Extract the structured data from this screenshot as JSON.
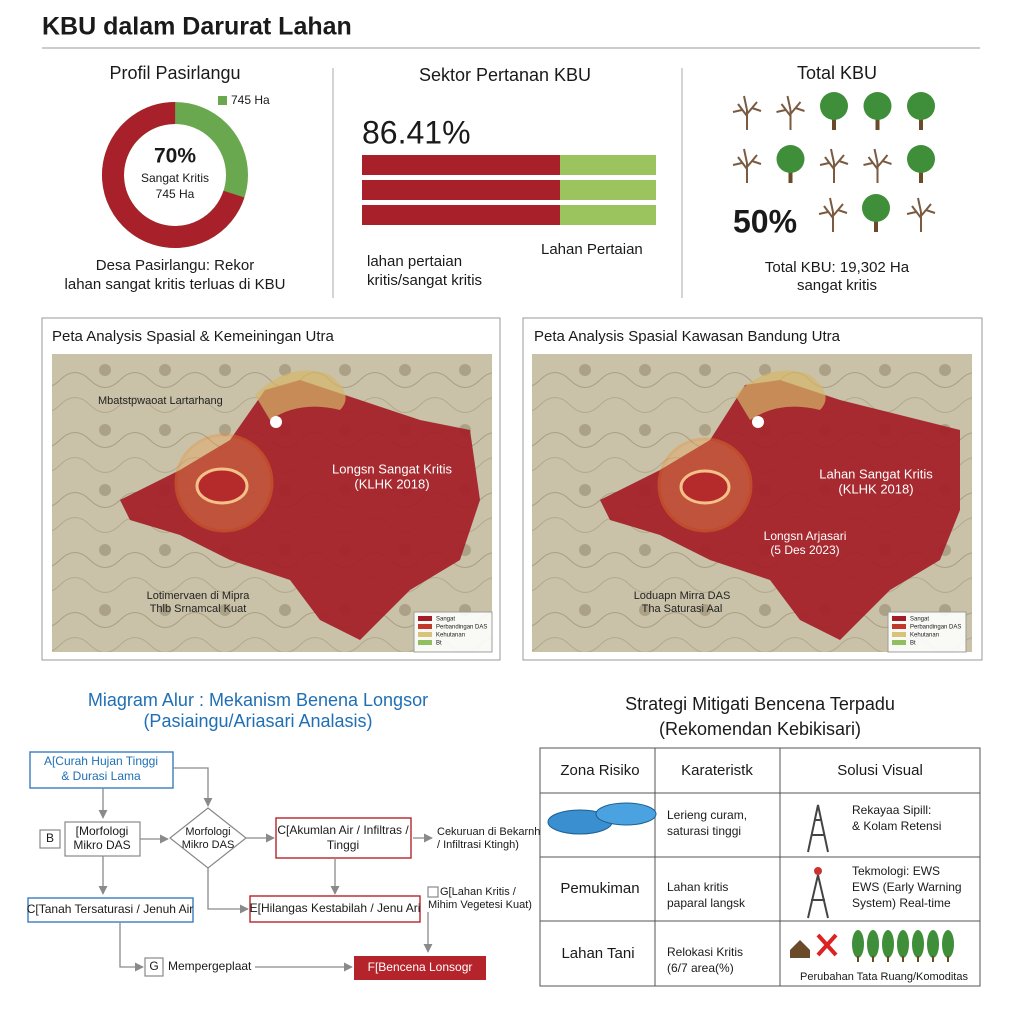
{
  "header": {
    "title": "KBU dalam Darurat Lahan"
  },
  "profile": {
    "title": "Profil Pasirlangu",
    "legend": "745 Ha",
    "donut": {
      "value": 70,
      "label": "70%"
    },
    "center_sub": "Sangat Kritis",
    "center_ha": "745 Ha",
    "caption": [
      "Desa Pasirlangu: Rekor",
      "lahan sangat kritis terluas di KBU"
    ]
  },
  "sector": {
    "title": "Sektor Pertanan KBU",
    "value": "86.41%",
    "left_label": [
      "lahan pertaian",
      "kritis/sangat kritis"
    ],
    "right_label": "Lahan Pertaian"
  },
  "total": {
    "title": "Total KBU",
    "value": "50%",
    "caption": [
      "Total KBU: 19,302 Ha",
      "sangat kritis"
    ]
  },
  "maps": [
    {
      "title": "Peta Analysis Spasial & Kemeiningan Utra",
      "boundary": "Mbatstpwaoat Lartarhang",
      "zone": [
        "Longsn Sangat Kritis",
        "(KLHK 2018)"
      ],
      "lower": [
        "Lotimervaen di Mipra",
        "Thlb Srnamcal Kuat"
      ],
      "legend": [
        "Sangat",
        "Perbandingan DAS",
        "Kehutanan",
        "Bt"
      ]
    },
    {
      "title": "Peta Analysis Spasial Kawasan Bandung Utra",
      "zone": [
        "Lahan Sangat Kritis",
        "(KLHK 2018)"
      ],
      "event": [
        "Longsn Arjasari",
        "(5 Des 2023)"
      ],
      "lower": [
        "Loduapn Mirra DAS",
        "Tha Saturasi Aal"
      ],
      "legend": [
        "Sangat",
        "Perbandingan DAS",
        "Kehutanan",
        "Bt"
      ]
    }
  ],
  "flow": {
    "title": [
      "Miagram Alur : Mekanism Benena Longsor",
      "(Pasiaingu/Ariasari Analasis)"
    ],
    "nodes": {
      "a": [
        "A[Curah Hujan Tinggi",
        "& Durasi Lama"
      ],
      "b": "B",
      "b_text": [
        "[Morfologi",
        "Mikro DAS"
      ],
      "diamond": [
        "Morfologi",
        "Mikro DAS"
      ],
      "c": [
        "C[Akumlan Air / Infiltras /",
        "Tinggi"
      ],
      "c_note": [
        "Cekuruan di Bekarnh",
        "/ Infiltrasi Ktingh)"
      ],
      "d": "C[Tanah Tersaturasi / Jenuh Air",
      "e": "E[Hilangas Kestabilah / Jenu Ari",
      "e_note": [
        "G[Lahan Kritis /",
        "Mihim Vegetesi Kuat)"
      ],
      "g": "G",
      "g_text": "Mempergeplaat",
      "f": "F[Bencena Lonsogr"
    }
  },
  "strategy": {
    "title": [
      "Strategi Mitigati Bencena Terpadu",
      "(Rekomendan Kebikisari)"
    ],
    "headers": [
      "Zona Risiko",
      "Karateristk",
      "Solusi Visual"
    ],
    "rows": [
      {
        "trait": [
          "Lerieng curam,",
          "saturasi tinggi"
        ],
        "solution": [
          "Rekayaa Sipill:",
          "& Kolam Retensi"
        ]
      },
      {
        "zone": "Pemukiman",
        "trait": [
          "Lahan kritis",
          "paparal langsk"
        ],
        "solution": [
          "Tekmologi: EWS",
          "EWS (Early Warning",
          "System) Real-time"
        ]
      },
      {
        "zone": "Lahan Tani",
        "trait": [
          "Relokasi Kritis",
          "(6/7 area(%)"
        ],
        "solution": [
          "Perubahan Tata Ruang/Komoditas"
        ]
      }
    ]
  }
}
